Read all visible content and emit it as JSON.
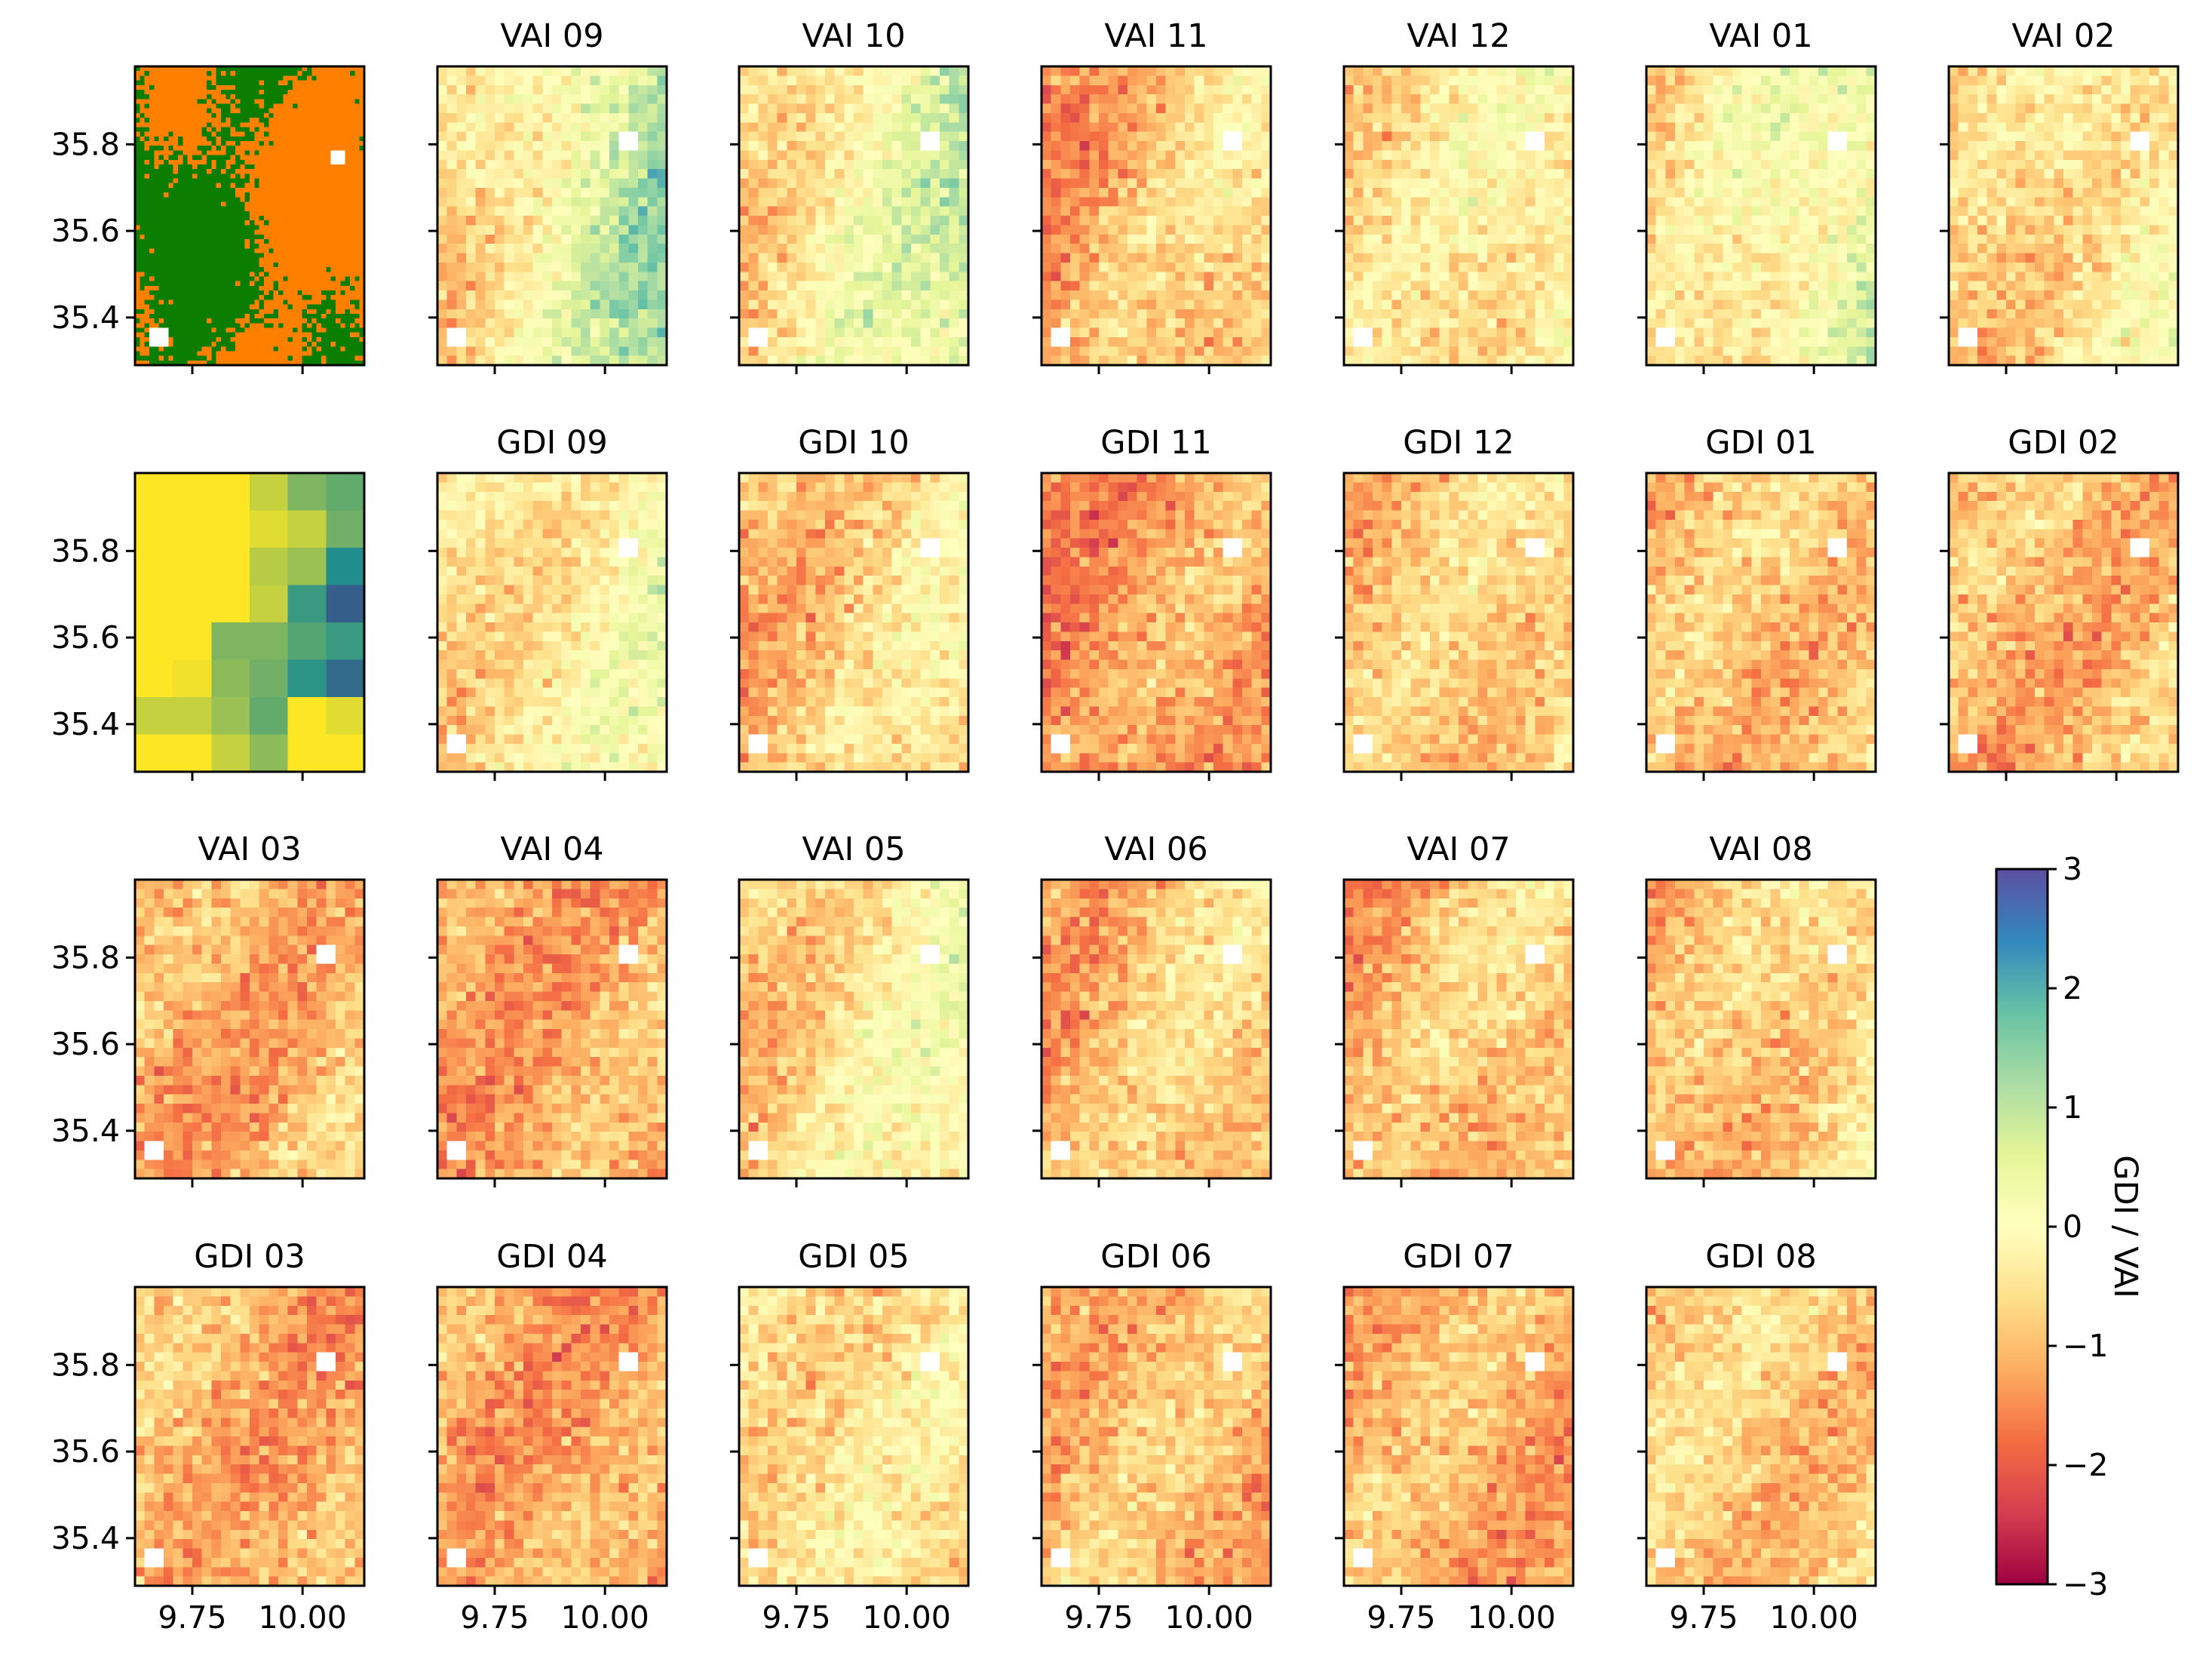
{
  "chart_data": {
    "type": "heatmap",
    "colormap": "Spectral",
    "colorbar": {
      "label": "GDI / VAI",
      "range": [
        -3,
        3
      ],
      "ticks": [
        3,
        2,
        1,
        0,
        -1,
        -2,
        -3
      ],
      "tick_labels": [
        "3",
        "2",
        "1",
        "0",
        "−1",
        "−2",
        "−3"
      ]
    },
    "x_tick_labels": [
      "9.75",
      "10.00"
    ],
    "x_ticks": [
      9.75,
      10.0
    ],
    "y_tick_labels": [
      "35.8",
      "35.6",
      "35.4"
    ],
    "y_ticks": [
      35.8,
      35.6,
      35.4
    ],
    "xlim": [
      9.62,
      10.14
    ],
    "ylim": [
      35.29,
      35.98
    ],
    "panels": [
      {
        "row": 0,
        "col": 0,
        "title": "",
        "kind": "landcover",
        "mean": 0
      },
      {
        "row": 0,
        "col": 1,
        "title": "VAI 09",
        "kind": "index",
        "mean": 0.2,
        "east_bias": 1.3
      },
      {
        "row": 0,
        "col": 2,
        "title": "VAI 10",
        "kind": "index",
        "mean": 0.0,
        "east_bias": 1.0
      },
      {
        "row": 0,
        "col": 3,
        "title": "VAI 11",
        "kind": "index",
        "mean": -0.9,
        "east_bias": 0.6
      },
      {
        "row": 0,
        "col": 4,
        "title": "VAI 12",
        "kind": "index",
        "mean": -0.4,
        "east_bias": 0.4
      },
      {
        "row": 0,
        "col": 5,
        "title": "VAI 01",
        "kind": "index",
        "mean": -0.1,
        "east_bias": 0.8
      },
      {
        "row": 0,
        "col": 6,
        "title": "VAI 02",
        "kind": "index",
        "mean": -0.5,
        "east_bias": 0.5
      },
      {
        "row": 1,
        "col": 0,
        "title": "",
        "kind": "coarse",
        "mean": 0
      },
      {
        "row": 1,
        "col": 1,
        "title": "GDI 09",
        "kind": "index",
        "mean": -0.3,
        "east_bias": 0.5
      },
      {
        "row": 1,
        "col": 2,
        "title": "GDI 10",
        "kind": "index",
        "mean": -0.7,
        "east_bias": 0.5
      },
      {
        "row": 1,
        "col": 3,
        "title": "GDI 11",
        "kind": "index",
        "mean": -1.3,
        "east_bias": 0.3
      },
      {
        "row": 1,
        "col": 4,
        "title": "GDI 12",
        "kind": "index",
        "mean": -0.8,
        "east_bias": 0.3
      },
      {
        "row": 1,
        "col": 5,
        "title": "GDI 01",
        "kind": "index",
        "mean": -0.9,
        "east_bias": 0.2
      },
      {
        "row": 1,
        "col": 6,
        "title": "GDI 02",
        "kind": "index",
        "mean": -1.0,
        "east_bias": 0.1
      },
      {
        "row": 2,
        "col": 0,
        "title": "VAI 03",
        "kind": "index",
        "mean": -1.1,
        "east_bias": 0.2
      },
      {
        "row": 2,
        "col": 1,
        "title": "VAI 04",
        "kind": "index",
        "mean": -1.2,
        "east_bias": 0.1
      },
      {
        "row": 2,
        "col": 2,
        "title": "VAI 05",
        "kind": "index",
        "mean": -0.4,
        "east_bias": 0.6
      },
      {
        "row": 2,
        "col": 3,
        "title": "VAI 06",
        "kind": "index",
        "mean": -0.9,
        "east_bias": 0.4
      },
      {
        "row": 2,
        "col": 4,
        "title": "VAI 07",
        "kind": "index",
        "mean": -0.9,
        "east_bias": 0.4
      },
      {
        "row": 2,
        "col": 5,
        "title": "VAI 08",
        "kind": "index",
        "mean": -0.8,
        "east_bias": 0.5
      },
      {
        "row": 3,
        "col": 0,
        "title": "GDI 03",
        "kind": "index",
        "mean": -1.1,
        "east_bias": -0.2
      },
      {
        "row": 3,
        "col": 1,
        "title": "GDI 04",
        "kind": "index",
        "mean": -1.2,
        "east_bias": -0.1
      },
      {
        "row": 3,
        "col": 2,
        "title": "GDI 05",
        "kind": "index",
        "mean": -0.5,
        "east_bias": 0.0
      },
      {
        "row": 3,
        "col": 3,
        "title": "GDI 06",
        "kind": "index",
        "mean": -1.0,
        "east_bias": 0.0
      },
      {
        "row": 3,
        "col": 4,
        "title": "GDI 07",
        "kind": "index",
        "mean": -1.1,
        "east_bias": -0.1
      },
      {
        "row": 3,
        "col": 5,
        "title": "GDI 08",
        "kind": "index",
        "mean": -0.8,
        "east_bias": 0.0
      }
    ]
  },
  "colors": {
    "forest": "#0b7d00",
    "cropland": "#ff7f00",
    "axis": "#000000"
  }
}
